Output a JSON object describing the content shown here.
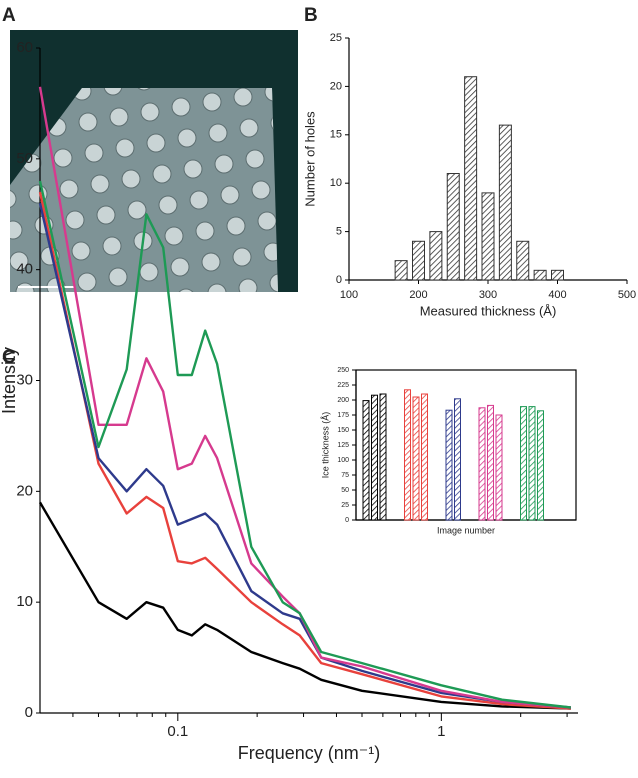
{
  "figure": {
    "panel_labels": [
      "A",
      "B",
      "C"
    ]
  },
  "chart_data": [
    {
      "type": "bar",
      "x": [
        175,
        200,
        225,
        250,
        275,
        300,
        325,
        350,
        375,
        400
      ],
      "values": [
        2,
        4,
        5,
        11,
        21,
        9,
        16,
        4,
        1,
        1
      ],
      "color": "#333333",
      "hatch": true,
      "xlim": [
        100,
        500
      ],
      "xticks": [
        100,
        200,
        300,
        400,
        500
      ],
      "ylim": [
        0,
        25
      ],
      "yticks": [
        0,
        5,
        10,
        15,
        20,
        25
      ],
      "xlabel": "Measured thickness (Å)",
      "ylabel": "Number of holes"
    },
    {
      "type": "line",
      "log_x": true,
      "x": [
        0.03,
        0.05,
        0.064,
        0.076,
        0.088,
        0.1,
        0.113,
        0.127,
        0.141,
        0.19,
        0.25,
        0.29,
        0.35,
        0.5,
        1,
        1.7,
        3.1
      ],
      "series": [
        {
          "color": "#000000",
          "values": [
            19,
            10,
            8.5,
            10,
            9.5,
            7.5,
            7,
            8,
            7.5,
            5.5,
            4.5,
            4,
            3,
            2,
            1,
            0.6,
            0.4
          ]
        },
        {
          "color": "#e8413c",
          "values": [
            47,
            22.5,
            18,
            19.5,
            18.5,
            13.7,
            13.5,
            14,
            13,
            10,
            8,
            7,
            4.5,
            3.5,
            1.5,
            0.8,
            0.4
          ]
        },
        {
          "color": "#2e3a8c",
          "values": [
            46,
            23,
            20,
            22,
            20.5,
            17,
            17.5,
            18,
            17,
            11,
            9,
            8.5,
            5,
            3.8,
            1.8,
            1,
            0.5
          ]
        },
        {
          "color": "#d63a8e",
          "values": [
            56.5,
            26,
            26,
            32,
            29,
            22,
            22.5,
            25,
            23,
            13.5,
            10.5,
            9,
            5,
            4.2,
            2,
            1,
            0.5
          ]
        },
        {
          "color": "#1e9a55",
          "values": [
            48,
            24,
            31,
            45,
            42,
            30.5,
            30.5,
            34.5,
            31.5,
            15,
            10,
            9,
            5.5,
            4.5,
            2.5,
            1.2,
            0.5
          ]
        }
      ],
      "xlim": [
        0.03,
        3.3
      ],
      "xticks": [
        0.1,
        1
      ],
      "xminorticks": [
        0.04,
        0.05,
        0.06,
        0.07,
        0.08,
        0.09,
        0.2,
        0.3,
        0.4,
        0.5,
        0.6,
        0.7,
        0.8,
        0.9,
        2,
        3
      ],
      "ylim": [
        0,
        60
      ],
      "yticks": [
        0,
        10,
        20,
        30,
        40,
        50,
        60
      ],
      "xlabel": "Frequency (nm⁻¹)",
      "ylabel": "Intensity"
    },
    {
      "type": "groupbar",
      "hatch": true,
      "series": [
        {
          "color": "#000000",
          "values": [
            199,
            208,
            210
          ]
        },
        {
          "color": "#e8413c",
          "values": [
            217,
            205,
            210
          ]
        },
        {
          "color": "#2e3a8c",
          "values": [
            183,
            202
          ]
        },
        {
          "color": "#d63a8e",
          "values": [
            187,
            191,
            175
          ]
        },
        {
          "color": "#1e9a55",
          "values": [
            189,
            189,
            182
          ]
        }
      ],
      "ylim": [
        0,
        250
      ],
      "yticks": [
        0,
        25,
        50,
        75,
        100,
        125,
        150,
        175,
        200,
        225,
        250
      ],
      "xlabel": "Image number",
      "ylabel": "Ice thickness (Å)"
    }
  ]
}
